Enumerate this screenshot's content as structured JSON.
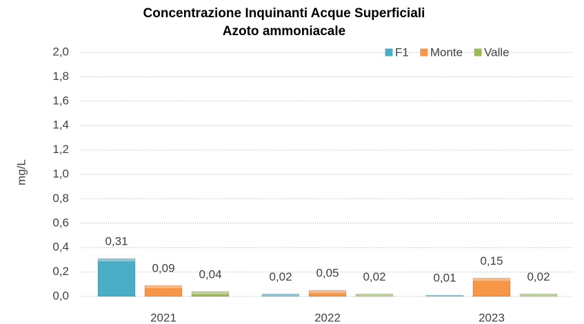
{
  "chart_data": {
    "type": "bar",
    "title": "Concentrazione Inquinanti Acque Superficiali",
    "subtitle": "Azoto ammoniacale",
    "y_label": "mg/L",
    "categories": [
      "2021",
      "2022",
      "2023"
    ],
    "series": [
      {
        "name": "F1",
        "color": "#4bacc6",
        "values": [
          0.31,
          0.02,
          0.01
        ],
        "value_labels": [
          "0,31",
          "0,02",
          "0,01"
        ]
      },
      {
        "name": "Monte",
        "color": "#f79646",
        "values": [
          0.09,
          0.05,
          0.15
        ],
        "value_labels": [
          "0,09",
          "0,05",
          "0,15"
        ]
      },
      {
        "name": "Valle",
        "color": "#9bbb59",
        "values": [
          0.04,
          0.02,
          0.02
        ],
        "value_labels": [
          "0,04",
          "0,02",
          "0,02"
        ]
      }
    ],
    "ylim": [
      0,
      2
    ],
    "yticks": [
      {
        "value": 0,
        "label": "0,0"
      },
      {
        "value": 0.2,
        "label": "0,2"
      },
      {
        "value": 0.4,
        "label": "0,4"
      },
      {
        "value": 0.6,
        "label": "0,6"
      },
      {
        "value": 0.8,
        "label": "0,8"
      },
      {
        "value": 1.0,
        "label": "1,0"
      },
      {
        "value": 1.2,
        "label": "1,2"
      },
      {
        "value": 1.4,
        "label": "1,4"
      },
      {
        "value": 1.6,
        "label": "1,6"
      },
      {
        "value": 1.8,
        "label": "1,8"
      },
      {
        "value": 2.0,
        "label": "2,0"
      }
    ],
    "grid": true,
    "legend": "top-right"
  }
}
